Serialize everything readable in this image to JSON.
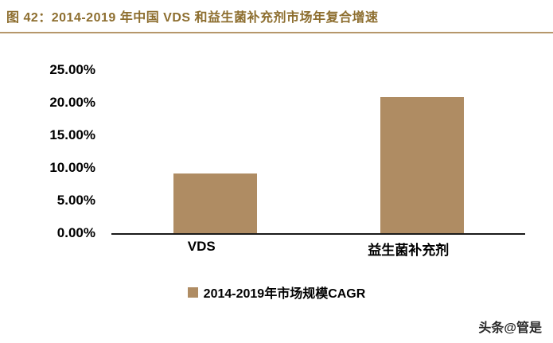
{
  "header": {
    "title": "图 42：2014-2019 年中国 VDS 和益生菌补充剂市场年复合增速"
  },
  "watermark": "头条@管是",
  "colors": {
    "bar": "#af8c63",
    "title": "#8d6e2f",
    "rule": "#b6976b"
  },
  "chart_data": {
    "type": "bar",
    "categories": [
      "VDS",
      "益生菌补充剂"
    ],
    "values": [
      9.1,
      20.9
    ],
    "title": "2014-2019 年中国 VDS 和益生菌补充剂市场年复合增速",
    "xlabel": "",
    "ylabel": "",
    "ylim": [
      0,
      25
    ],
    "yticks": [
      "25.00%",
      "20.00%",
      "15.00%",
      "10.00%",
      "5.00%",
      "0.00%"
    ],
    "ytick_values": [
      25,
      20,
      15,
      10,
      5,
      0
    ],
    "grid": false,
    "legend": [
      "2014-2019年市场规模CAGR"
    ],
    "legend_position": "bottom"
  }
}
